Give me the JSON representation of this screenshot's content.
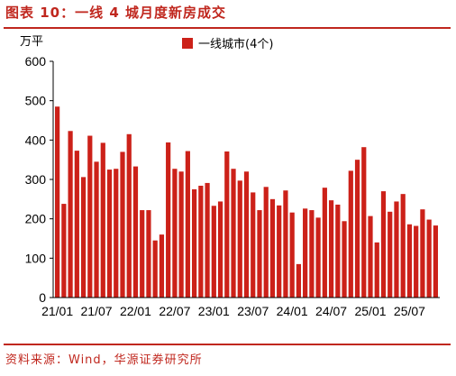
{
  "title": "图表 10：一线 4 城月度新房成交",
  "source": "资料来源：Wind，华源证券研究所",
  "colors": {
    "accent": "#c0271e",
    "bar": "#cc2119"
  },
  "chart_data": {
    "type": "bar",
    "ylabel": "万平",
    "ylim": [
      0,
      600
    ],
    "yticks": [
      0,
      100,
      200,
      300,
      400,
      500,
      600
    ],
    "xtick_labels": [
      "21/01",
      "21/07",
      "22/01",
      "22/07",
      "23/01",
      "23/07",
      "24/01",
      "24/07",
      "25/01",
      "25/07"
    ],
    "legend_position": "top-center",
    "categories": [
      "21/01",
      "21/02",
      "21/03",
      "21/04",
      "21/05",
      "21/06",
      "21/07",
      "21/08",
      "21/09",
      "21/10",
      "21/11",
      "21/12",
      "22/01",
      "22/02",
      "22/03",
      "22/04",
      "22/05",
      "22/06",
      "22/07",
      "22/08",
      "22/09",
      "22/10",
      "22/11",
      "22/12",
      "23/01",
      "23/02",
      "23/03",
      "23/04",
      "23/05",
      "23/06",
      "23/07",
      "23/08",
      "23/09",
      "23/10",
      "23/11",
      "23/12",
      "24/01",
      "24/02",
      "24/03",
      "24/04",
      "24/05",
      "24/06",
      "24/07",
      "24/08",
      "24/09",
      "24/10",
      "24/11",
      "24/12",
      "25/01",
      "25/02",
      "25/03",
      "25/04",
      "25/05",
      "25/06",
      "25/07",
      "25/08",
      "25/09",
      "25/10",
      "25/11"
    ],
    "series": [
      {
        "name": "一线城市(4个)",
        "values": [
          485,
          238,
          423,
          373,
          306,
          411,
          345,
          393,
          325,
          327,
          370,
          415,
          333,
          222,
          222,
          145,
          160,
          394,
          327,
          320,
          372,
          275,
          284,
          291,
          233,
          244,
          371,
          327,
          297,
          320,
          267,
          222,
          281,
          250,
          234,
          272,
          216,
          85,
          226,
          222,
          203,
          279,
          247,
          236,
          194,
          322,
          350,
          382,
          207,
          140,
          270,
          218,
          244,
          263,
          186,
          182,
          224,
          198,
          183
        ]
      }
    ]
  }
}
